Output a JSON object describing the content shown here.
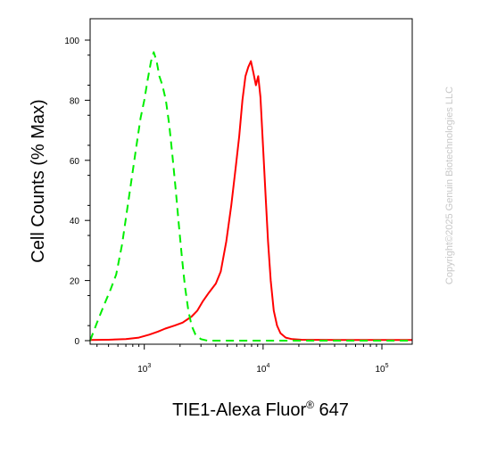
{
  "chart_data": {
    "type": "line",
    "xscale": "log",
    "xlim": [
      350,
      180000
    ],
    "ylim": [
      0,
      100
    ],
    "ylabel": "Cell Counts (% Max)",
    "xlabel": {
      "main": "TIE1-Alexa Fluor",
      "superscript": "®",
      "suffix": " 647"
    },
    "x_ticks": [
      {
        "value": 1000,
        "base": "10",
        "exp": "3"
      },
      {
        "value": 10000,
        "base": "10",
        "exp": "4"
      },
      {
        "value": 100000,
        "base": "10",
        "exp": "5"
      }
    ],
    "y_ticks": [
      {
        "value": 0,
        "label": "0"
      },
      {
        "value": 20,
        "label": "20"
      },
      {
        "value": 40,
        "label": "40"
      },
      {
        "value": 60,
        "label": "60"
      },
      {
        "value": 80,
        "label": "80"
      },
      {
        "value": 100,
        "label": "100"
      }
    ],
    "grid": false,
    "series": [
      {
        "color": "#ff0000",
        "style": "solid",
        "points": [
          [
            350,
            0.2
          ],
          [
            500,
            0.3
          ],
          [
            700,
            0.5
          ],
          [
            900,
            1
          ],
          [
            1100,
            2
          ],
          [
            1300,
            3
          ],
          [
            1500,
            4
          ],
          [
            1800,
            5
          ],
          [
            2100,
            6
          ],
          [
            2500,
            8
          ],
          [
            2800,
            10
          ],
          [
            3100,
            13
          ],
          [
            3500,
            16
          ],
          [
            4000,
            19
          ],
          [
            4400,
            23
          ],
          [
            4900,
            33
          ],
          [
            5400,
            45
          ],
          [
            5900,
            58
          ],
          [
            6300,
            68
          ],
          [
            6700,
            80
          ],
          [
            7100,
            88
          ],
          [
            7500,
            91
          ],
          [
            7900,
            93
          ],
          [
            8300,
            89
          ],
          [
            8700,
            85
          ],
          [
            9100,
            88
          ],
          [
            9500,
            81
          ],
          [
            10000,
            64
          ],
          [
            10500,
            48
          ],
          [
            11000,
            33
          ],
          [
            11600,
            20
          ],
          [
            12300,
            10
          ],
          [
            13100,
            5
          ],
          [
            14000,
            2.5
          ],
          [
            15500,
            1
          ],
          [
            17500,
            0.5
          ],
          [
            21000,
            0.3
          ],
          [
            40000,
            0.2
          ],
          [
            80000,
            0.2
          ],
          [
            180000,
            0.2
          ]
        ]
      },
      {
        "color": "#00ee00",
        "style": "dashed",
        "points": [
          [
            350,
            0
          ],
          [
            400,
            6
          ],
          [
            460,
            12
          ],
          [
            520,
            17
          ],
          [
            580,
            22
          ],
          [
            650,
            32
          ],
          [
            720,
            44
          ],
          [
            790,
            55
          ],
          [
            860,
            65
          ],
          [
            930,
            74
          ],
          [
            1000,
            80
          ],
          [
            1070,
            87
          ],
          [
            1140,
            93
          ],
          [
            1200,
            96
          ],
          [
            1270,
            93
          ],
          [
            1340,
            88
          ],
          [
            1420,
            85
          ],
          [
            1520,
            80
          ],
          [
            1620,
            72
          ],
          [
            1720,
            62
          ],
          [
            1840,
            50
          ],
          [
            1960,
            38
          ],
          [
            2080,
            27
          ],
          [
            2200,
            18
          ],
          [
            2350,
            10
          ],
          [
            2500,
            5
          ],
          [
            2700,
            2
          ],
          [
            3000,
            0.5
          ],
          [
            3400,
            0
          ],
          [
            10000,
            0
          ],
          [
            50000,
            0
          ],
          [
            180000,
            0
          ]
        ]
      }
    ]
  },
  "watermark": "Copyright©2025 Genuin Biotechnologies LLC"
}
